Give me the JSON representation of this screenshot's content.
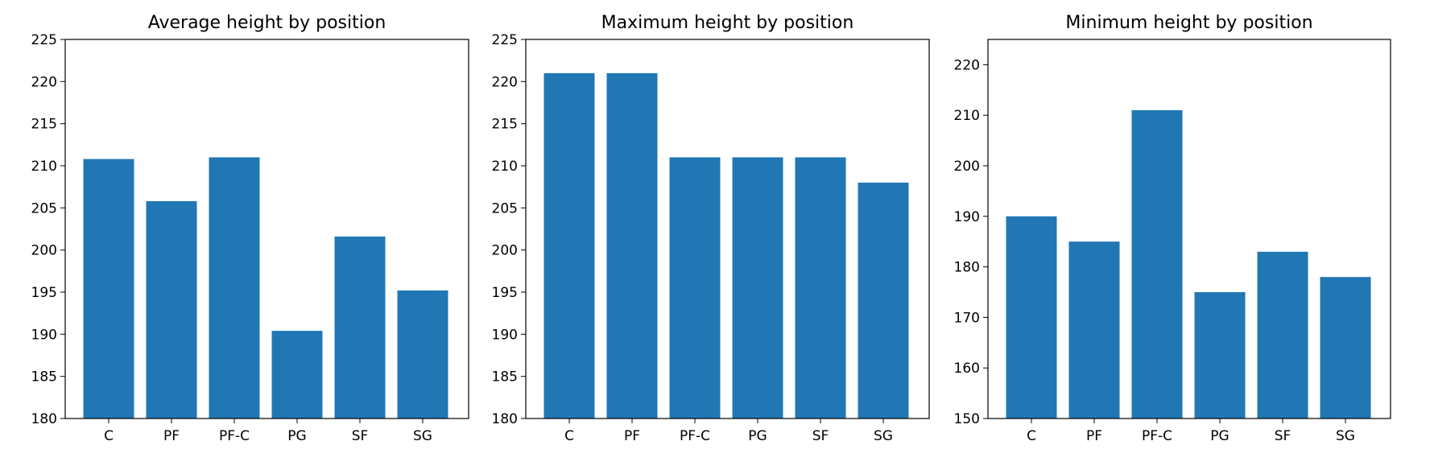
{
  "chart_data": [
    {
      "type": "bar",
      "title": "Average height by position",
      "categories": [
        "C",
        "PF",
        "PF-C",
        "PG",
        "SF",
        "SG"
      ],
      "values": [
        210.8,
        205.8,
        211.0,
        190.4,
        201.6,
        195.2
      ],
      "ylim": [
        180,
        225
      ],
      "yticks": [
        180,
        185,
        190,
        195,
        200,
        205,
        210,
        215,
        220,
        225
      ],
      "color": "#2077b4",
      "grid": false
    },
    {
      "type": "bar",
      "title": "Maximum height by position",
      "categories": [
        "C",
        "PF",
        "PF-C",
        "PG",
        "SF",
        "SG"
      ],
      "values": [
        221,
        221,
        211,
        211,
        211,
        208
      ],
      "ylim": [
        180,
        225
      ],
      "yticks": [
        180,
        185,
        190,
        195,
        200,
        205,
        210,
        215,
        220,
        225
      ],
      "color": "#2077b4",
      "grid": false
    },
    {
      "type": "bar",
      "title": "Minimum height by position",
      "categories": [
        "C",
        "PF",
        "PF-C",
        "PG",
        "SF",
        "SG"
      ],
      "values": [
        190,
        185,
        211,
        175,
        183,
        178
      ],
      "ylim": [
        150,
        225
      ],
      "yticks": [
        150,
        160,
        170,
        180,
        190,
        200,
        210,
        220
      ],
      "color": "#2077b4",
      "grid": false
    }
  ]
}
